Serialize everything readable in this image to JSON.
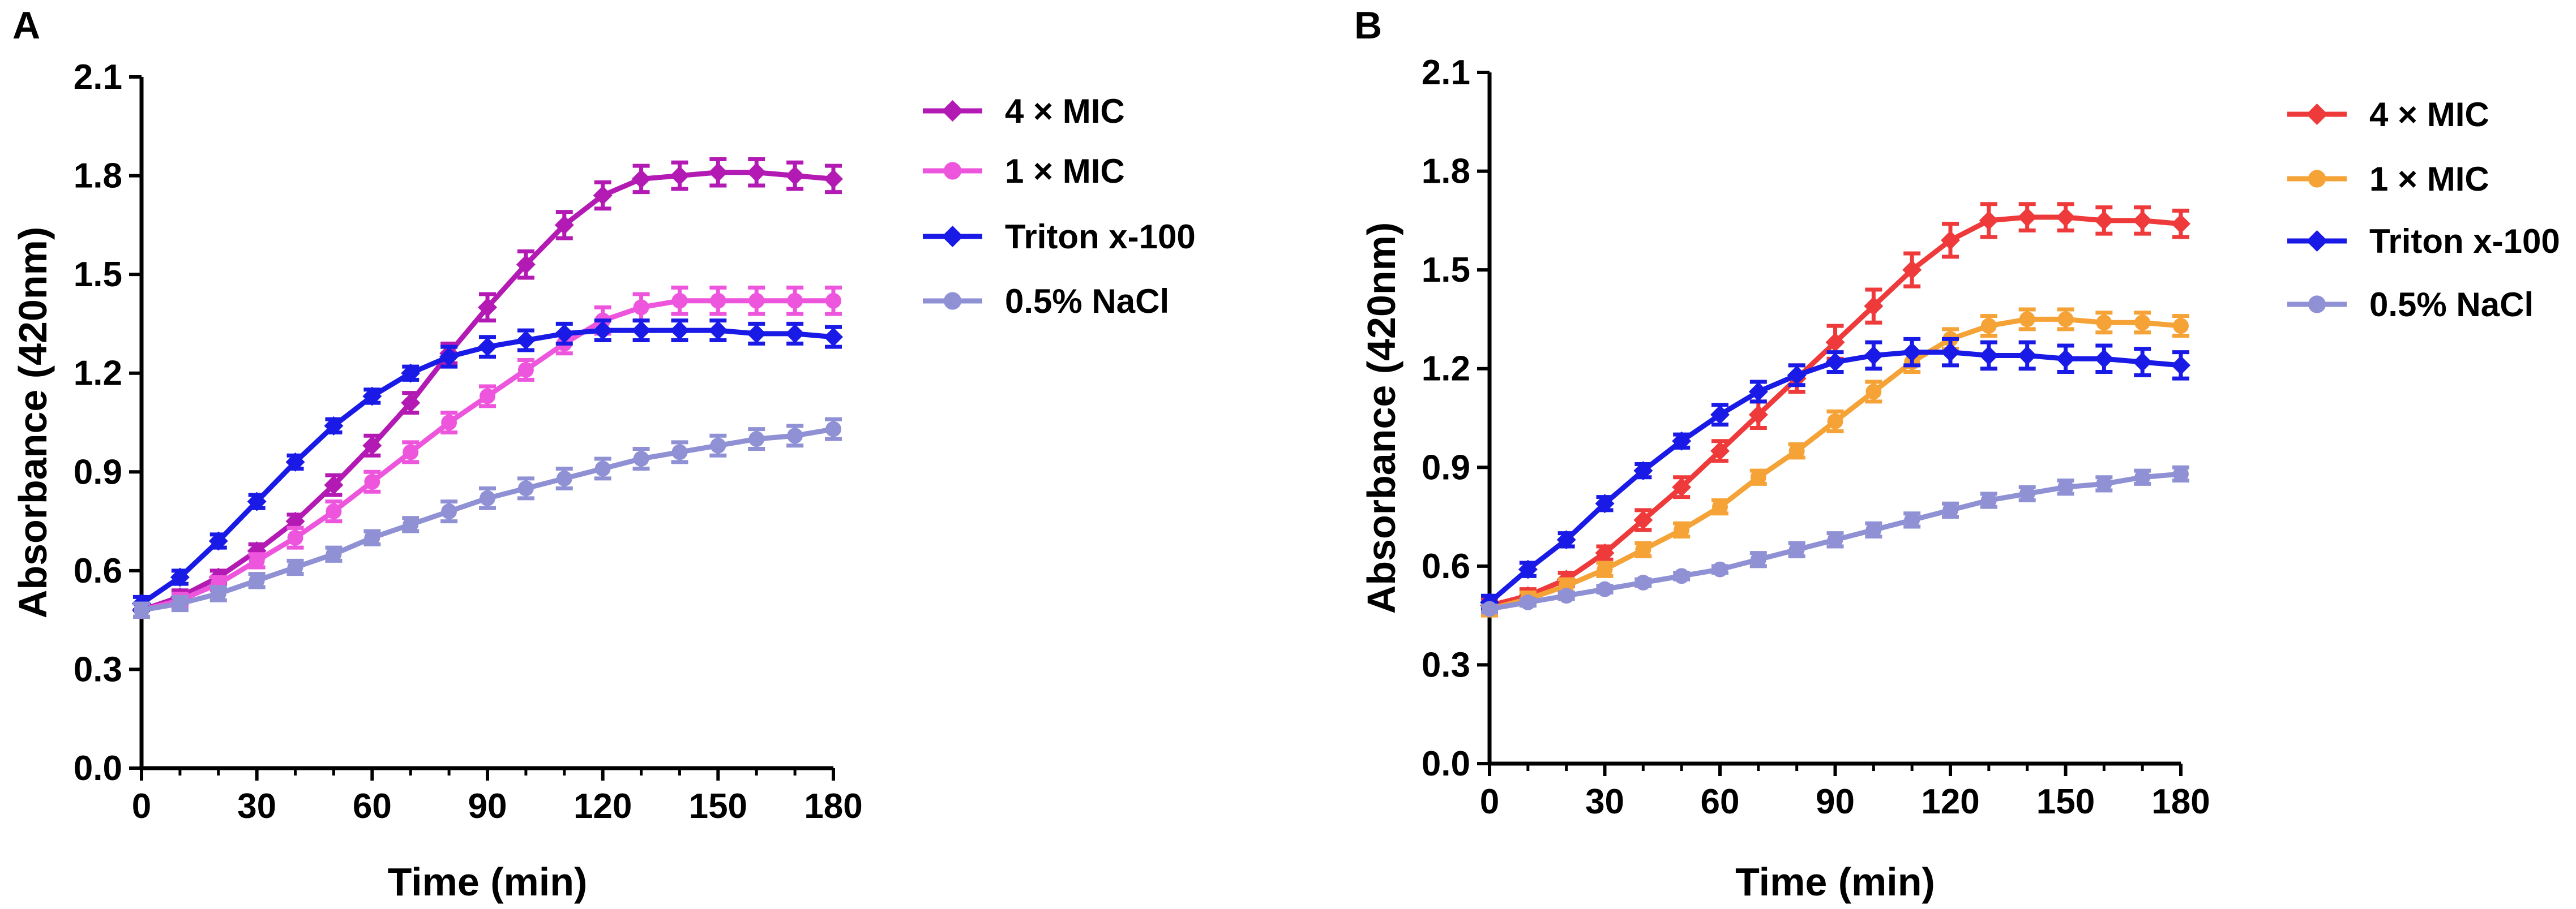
{
  "chart_data": [
    {
      "panel": "A",
      "type": "line",
      "xlabel": "Time (min)",
      "ylabel": "Absorbance (420nm)",
      "xlim": [
        0,
        180
      ],
      "ylim": [
        0,
        2.1
      ],
      "xticks": [
        "0",
        "30",
        "60",
        "90",
        "120",
        "150",
        "180"
      ],
      "yticks": [
        "0.0",
        "0.3",
        "0.6",
        "0.9",
        "1.2",
        "1.5",
        "1.8",
        "2.1"
      ],
      "legend_position": "right",
      "x": [
        0,
        10,
        20,
        30,
        40,
        50,
        60,
        70,
        80,
        90,
        100,
        110,
        120,
        130,
        140,
        150,
        160,
        170,
        180
      ],
      "series": [
        {
          "name": "4 × MIC",
          "color": "#b31ab3",
          "marker": "diamond",
          "values": [
            0.48,
            0.52,
            0.58,
            0.66,
            0.75,
            0.86,
            0.98,
            1.11,
            1.26,
            1.4,
            1.53,
            1.65,
            1.74,
            1.79,
            1.8,
            1.81,
            1.81,
            1.8,
            1.79
          ],
          "errors": [
            0.02,
            0.02,
            0.02,
            0.02,
            0.02,
            0.03,
            0.03,
            0.03,
            0.03,
            0.04,
            0.04,
            0.04,
            0.04,
            0.04,
            0.04,
            0.04,
            0.04,
            0.04,
            0.04
          ]
        },
        {
          "name": "1 × MIC",
          "color": "#ee55dd",
          "marker": "circle",
          "values": [
            0.48,
            0.51,
            0.56,
            0.63,
            0.7,
            0.78,
            0.87,
            0.96,
            1.05,
            1.13,
            1.21,
            1.29,
            1.36,
            1.4,
            1.42,
            1.42,
            1.42,
            1.42,
            1.42
          ],
          "errors": [
            0.02,
            0.02,
            0.02,
            0.02,
            0.03,
            0.03,
            0.03,
            0.03,
            0.03,
            0.03,
            0.03,
            0.03,
            0.04,
            0.04,
            0.04,
            0.04,
            0.04,
            0.04,
            0.04
          ]
        },
        {
          "name": "Triton x-100",
          "color": "#1a1ae6",
          "marker": "diamond",
          "values": [
            0.5,
            0.58,
            0.69,
            0.81,
            0.93,
            1.04,
            1.13,
            1.2,
            1.25,
            1.28,
            1.3,
            1.32,
            1.33,
            1.33,
            1.33,
            1.33,
            1.32,
            1.32,
            1.31
          ],
          "errors": [
            0.02,
            0.02,
            0.02,
            0.02,
            0.02,
            0.02,
            0.02,
            0.02,
            0.03,
            0.03,
            0.03,
            0.03,
            0.03,
            0.03,
            0.03,
            0.03,
            0.03,
            0.03,
            0.03
          ]
        },
        {
          "name": "0.5% NaCl",
          "color": "#8f91d4",
          "marker": "circle",
          "values": [
            0.48,
            0.5,
            0.53,
            0.57,
            0.61,
            0.65,
            0.7,
            0.74,
            0.78,
            0.82,
            0.85,
            0.88,
            0.91,
            0.94,
            0.96,
            0.98,
            1.0,
            1.01,
            1.03
          ],
          "errors": [
            0.02,
            0.02,
            0.02,
            0.02,
            0.02,
            0.02,
            0.02,
            0.02,
            0.03,
            0.03,
            0.03,
            0.03,
            0.03,
            0.03,
            0.03,
            0.03,
            0.03,
            0.03,
            0.03
          ]
        }
      ]
    },
    {
      "panel": "B",
      "type": "line",
      "xlabel": "Time (min)",
      "ylabel": "Absorbance (420nm)",
      "xlim": [
        0,
        180
      ],
      "ylim": [
        0,
        2.1
      ],
      "xticks": [
        "0",
        "30",
        "60",
        "90",
        "120",
        "150",
        "180"
      ],
      "yticks": [
        "0.0",
        "0.3",
        "0.6",
        "0.9",
        "1.2",
        "1.5",
        "1.8",
        "2.1"
      ],
      "legend_position": "right",
      "x": [
        0,
        10,
        20,
        30,
        40,
        50,
        60,
        70,
        80,
        90,
        100,
        110,
        120,
        130,
        140,
        150,
        160,
        170,
        180
      ],
      "series": [
        {
          "name": "4 × MIC",
          "color": "#ee3a3a",
          "marker": "diamond",
          "values": [
            0.48,
            0.51,
            0.56,
            0.64,
            0.74,
            0.84,
            0.95,
            1.06,
            1.17,
            1.28,
            1.39,
            1.5,
            1.59,
            1.65,
            1.66,
            1.66,
            1.65,
            1.65,
            1.64
          ],
          "errors": [
            0.02,
            0.02,
            0.02,
            0.02,
            0.03,
            0.03,
            0.03,
            0.04,
            0.04,
            0.05,
            0.05,
            0.05,
            0.05,
            0.05,
            0.04,
            0.04,
            0.04,
            0.04,
            0.04
          ]
        },
        {
          "name": "1 × MIC",
          "color": "#f5a236",
          "marker": "circle",
          "values": [
            0.47,
            0.5,
            0.54,
            0.59,
            0.65,
            0.71,
            0.78,
            0.87,
            0.95,
            1.04,
            1.13,
            1.22,
            1.29,
            1.33,
            1.35,
            1.35,
            1.34,
            1.34,
            1.33
          ],
          "errors": [
            0.02,
            0.02,
            0.02,
            0.02,
            0.02,
            0.02,
            0.02,
            0.02,
            0.02,
            0.03,
            0.03,
            0.03,
            0.03,
            0.03,
            0.03,
            0.03,
            0.03,
            0.03,
            0.03
          ]
        },
        {
          "name": "Triton x-100",
          "color": "#1a1ae6",
          "marker": "diamond",
          "values": [
            0.49,
            0.59,
            0.68,
            0.79,
            0.89,
            0.98,
            1.06,
            1.13,
            1.18,
            1.22,
            1.24,
            1.25,
            1.25,
            1.24,
            1.24,
            1.23,
            1.23,
            1.22,
            1.21
          ],
          "errors": [
            0.02,
            0.02,
            0.02,
            0.02,
            0.02,
            0.02,
            0.03,
            0.03,
            0.03,
            0.03,
            0.04,
            0.04,
            0.04,
            0.04,
            0.04,
            0.04,
            0.04,
            0.04,
            0.04
          ]
        },
        {
          "name": "0.5% NaCl",
          "color": "#8f91d4",
          "marker": "circle",
          "values": [
            0.47,
            0.49,
            0.51,
            0.53,
            0.55,
            0.57,
            0.59,
            0.62,
            0.65,
            0.68,
            0.71,
            0.74,
            0.77,
            0.8,
            0.82,
            0.84,
            0.85,
            0.87,
            0.88
          ],
          "errors": [
            0.01,
            0.01,
            0.01,
            0.01,
            0.01,
            0.01,
            0.01,
            0.02,
            0.02,
            0.02,
            0.02,
            0.02,
            0.02,
            0.02,
            0.02,
            0.02,
            0.02,
            0.02,
            0.02
          ]
        }
      ]
    }
  ]
}
